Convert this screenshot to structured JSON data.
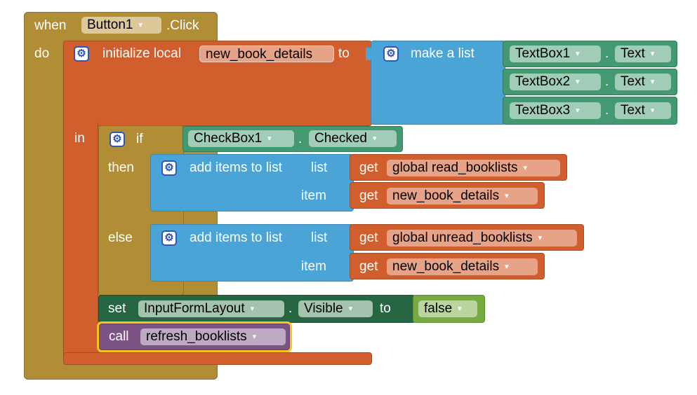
{
  "event": {
    "when": "when",
    "component": "Button1",
    "event_name": ".Click",
    "do": "do"
  },
  "local_var": {
    "label": "initialize local",
    "name": "new_book_details",
    "to": "to",
    "in": "in"
  },
  "make_list": {
    "label": "make a list",
    "items": [
      {
        "component": "TextBox1",
        "dot": ".",
        "property": "Text"
      },
      {
        "component": "TextBox2",
        "dot": ".",
        "property": "Text"
      },
      {
        "component": "TextBox3",
        "dot": ".",
        "property": "Text"
      }
    ]
  },
  "if_block": {
    "if": "if",
    "then": "then",
    "else": "else",
    "condition": {
      "component": "CheckBox1",
      "dot": ".",
      "property": "Checked"
    }
  },
  "add_then": {
    "label": "add items to list",
    "list": "list",
    "item": "item",
    "get": "get",
    "list_var": "global read_booklists",
    "item_var": "new_book_details"
  },
  "add_else": {
    "label": "add items to list",
    "list": "list",
    "item": "item",
    "get": "get",
    "list_var": "global unread_booklists",
    "item_var": "new_book_details"
  },
  "set_block": {
    "set": "set",
    "component": "InputFormLayout",
    "dot": ".",
    "property": "Visible",
    "to": "to",
    "value": "false"
  },
  "call_block": {
    "call": "call",
    "procedure": "refresh_booklists"
  },
  "dropdown_arrow": "▾"
}
